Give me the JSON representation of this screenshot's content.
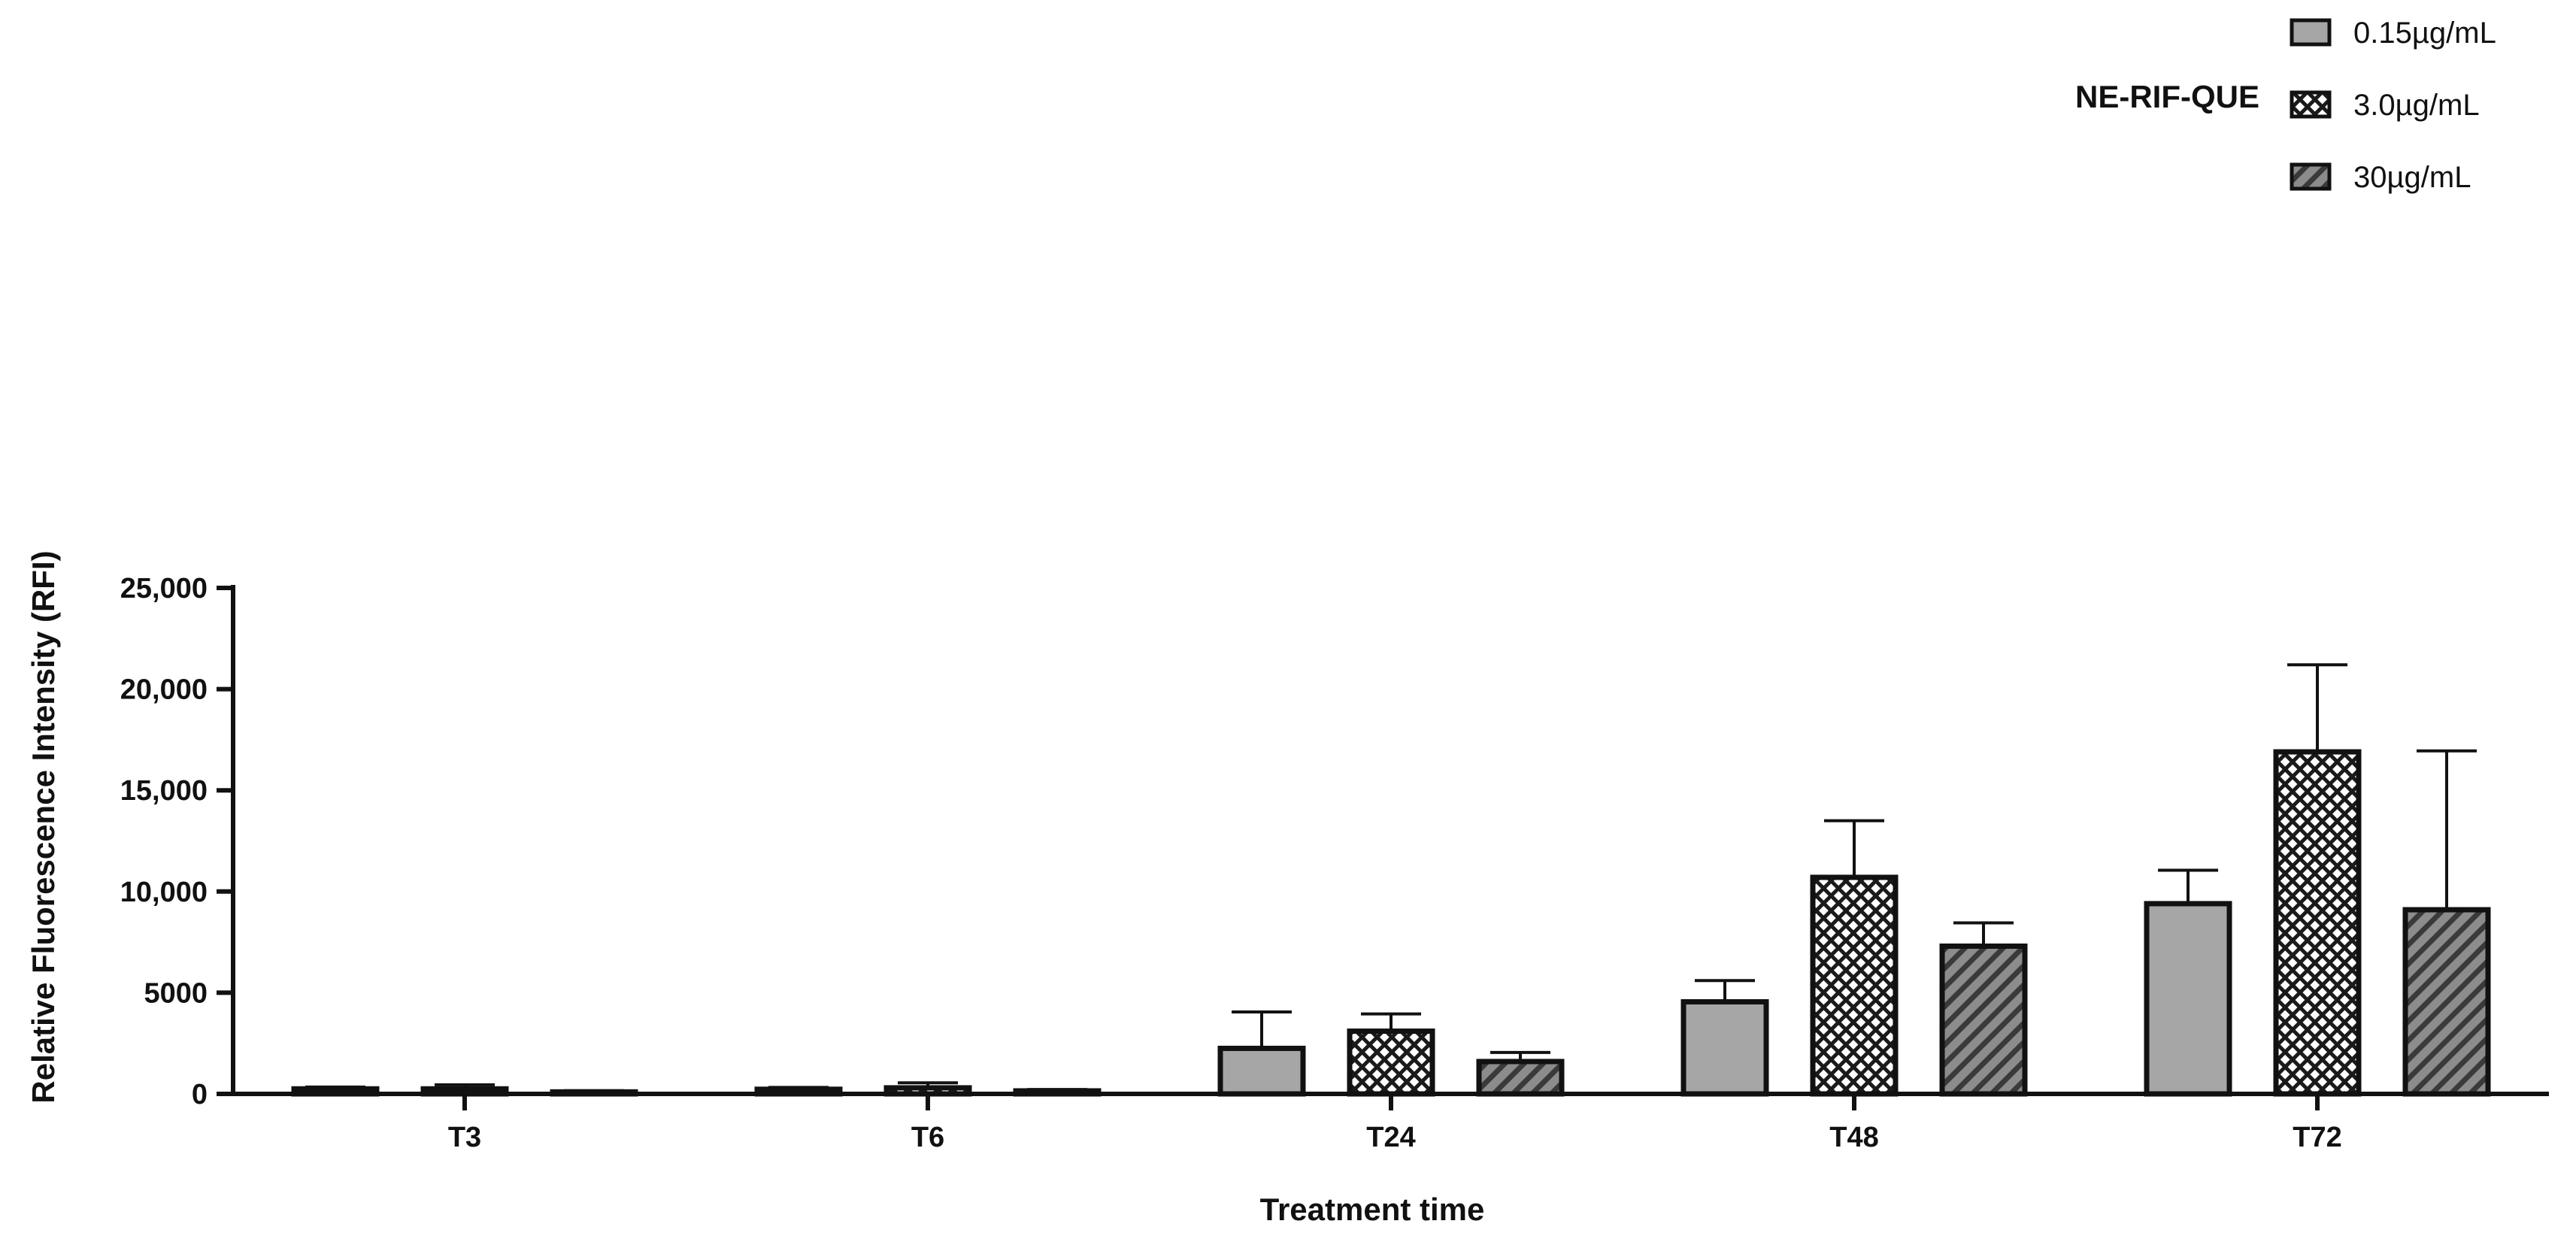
{
  "chart_data": {
    "type": "bar",
    "title": "",
    "xlabel": "Treatment time",
    "ylabel": "Relative Fluorescence Intensity (RFI)",
    "ylim": [
      0,
      25000
    ],
    "yticks": [
      0,
      5000,
      10000,
      15000,
      20000,
      25000
    ],
    "ytick_labels": [
      "0",
      "5000",
      "10,000",
      "15,000",
      "20,000",
      "25,000"
    ],
    "categories": [
      "T3",
      "T6",
      "T24",
      "T48",
      "T72"
    ],
    "legend_title": "NE-RIF-QUE",
    "legend_position": "top-right",
    "grid": false,
    "series": [
      {
        "name": "0.15µg/mL",
        "values": [
          250,
          230,
          2250,
          4550,
          9400
        ],
        "errors": [
          90,
          90,
          1800,
          1050,
          1650
        ],
        "fill": "#a6a6a6",
        "pattern": "solid"
      },
      {
        "name": "3.0µg/mL",
        "values": [
          250,
          300,
          3100,
          10700,
          16900
        ],
        "errors": [
          200,
          250,
          850,
          2800,
          4300
        ],
        "fill": "#ffffff",
        "pattern": "crosshatch"
      },
      {
        "name": "30µg/mL",
        "values": [
          100,
          150,
          1600,
          7300,
          9100
        ],
        "errors": [
          60,
          70,
          450,
          1150,
          7850
        ],
        "fill": "#7a7a7a",
        "pattern": "diagonal"
      }
    ]
  }
}
